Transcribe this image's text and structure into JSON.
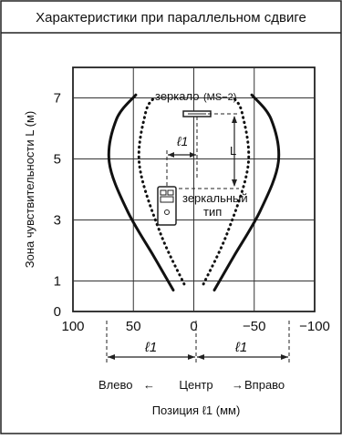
{
  "header": {
    "title": "Характеристики при параллельном сдвиге"
  },
  "chart_data": {
    "type": "line",
    "ylabel": "Зона чувствительности  L (м)",
    "xlabel": "Позиция  ℓ1 (мм)",
    "xlim": [
      100,
      -100
    ],
    "ylim": [
      0,
      8
    ],
    "x_ticks": [
      "100",
      "50",
      "0",
      "−50",
      "−100"
    ],
    "y_ticks": [
      "0",
      "1",
      "3",
      "5",
      "7"
    ],
    "grid": true,
    "series": [
      {
        "style": "solid",
        "left": [
          [
            17,
            0.7
          ],
          [
            33,
            1.8
          ],
          [
            55,
            3.3
          ],
          [
            70,
            4.9
          ],
          [
            64,
            6.3
          ],
          [
            48,
            7.1
          ]
        ],
        "right": [
          [
            -17,
            0.7
          ],
          [
            -33,
            1.8
          ],
          [
            -55,
            3.3
          ],
          [
            -70,
            4.9
          ],
          [
            -64,
            6.3
          ],
          [
            -48,
            7.1
          ]
        ]
      },
      {
        "style": "dotted",
        "left": [
          [
            8,
            0.9
          ],
          [
            28,
            2.6
          ],
          [
            45,
            4.8
          ],
          [
            40,
            6.5
          ],
          [
            33,
            7.0
          ]
        ],
        "right": [
          [
            -8,
            0.9
          ],
          [
            -28,
            2.6
          ],
          [
            -45,
            4.8
          ],
          [
            -40,
            6.5
          ],
          [
            -33,
            7.0
          ]
        ]
      }
    ],
    "annotations": {
      "mirror": "зеркало",
      "mirror_model": "(MS−2)",
      "l1": "ℓ1",
      "L": "L",
      "sensor_line1": "зеркальный",
      "sensor_line2": "тип",
      "left_dim": "ℓ1",
      "right_dim": "ℓ1",
      "left_label": "Влево",
      "center_label": "Центр",
      "right_label": "Вправо",
      "arrow_left": "←",
      "arrow_right": "→"
    }
  }
}
